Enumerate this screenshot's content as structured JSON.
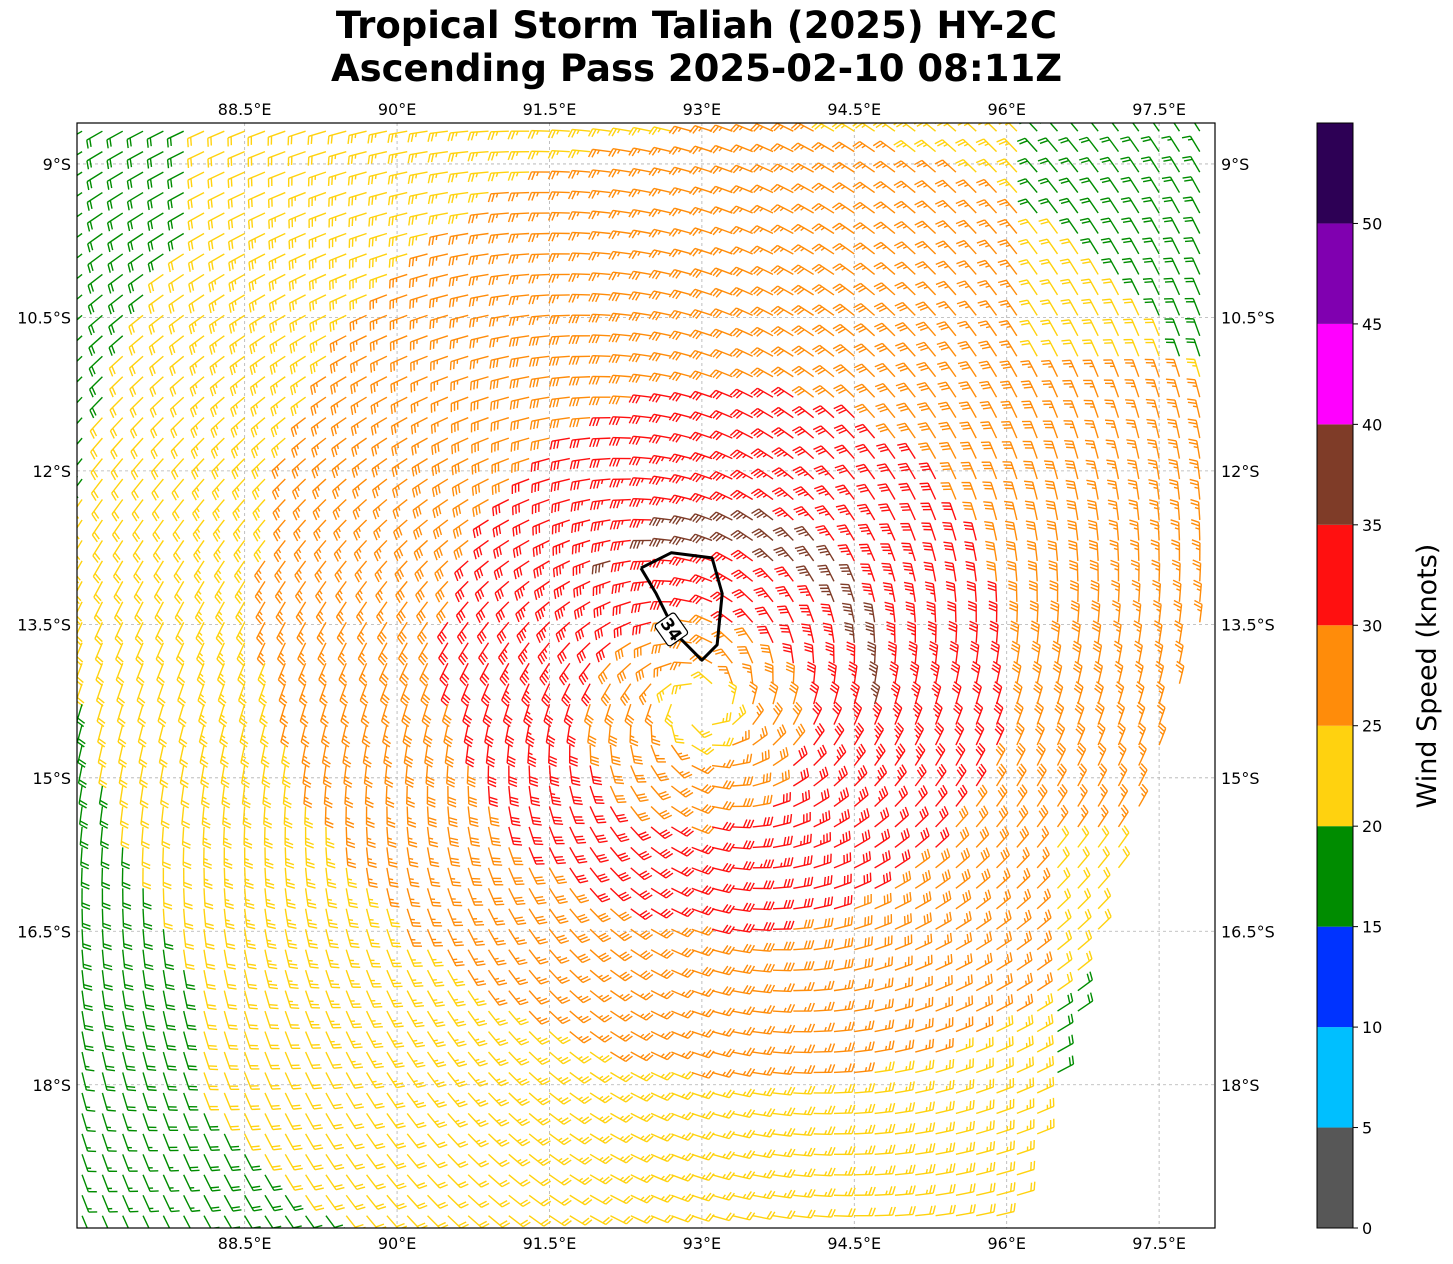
{
  "title": {
    "line1": "Tropical Storm Taliah (2025) HY-2C",
    "line2": "Ascending Pass 2025-02-10 08:11Z"
  },
  "colorbar": {
    "label": "Wind Speed (knots)",
    "ticks": [
      "0",
      "5",
      "10",
      "15",
      "20",
      "25",
      "30",
      "35",
      "40",
      "45",
      "50"
    ],
    "bins": [
      {
        "min": 0,
        "max": 5,
        "color": "#575757"
      },
      {
        "min": 5,
        "max": 10,
        "color": "#00bfff"
      },
      {
        "min": 10,
        "max": 15,
        "color": "#0033ff"
      },
      {
        "min": 15,
        "max": 20,
        "color": "#008c00"
      },
      {
        "min": 20,
        "max": 25,
        "color": "#ffd20f"
      },
      {
        "min": 25,
        "max": 30,
        "color": "#ff8c0a"
      },
      {
        "min": 30,
        "max": 35,
        "color": "#ff1010"
      },
      {
        "min": 35,
        "max": 40,
        "color": "#7f3c28"
      },
      {
        "min": 40,
        "max": 45,
        "color": "#ff00ff"
      },
      {
        "min": 45,
        "max": 50,
        "color": "#8000b0"
      },
      {
        "min": 50,
        "max": 55,
        "color": "#2d0055"
      }
    ]
  },
  "chart_data": {
    "type": "wind-barb-map",
    "lon_range": [
      86.85,
      98.05
    ],
    "lat_range": [
      -19.4,
      -8.6
    ],
    "lon_ticks": [
      88.5,
      90,
      91.5,
      93,
      94.5,
      96,
      97.5
    ],
    "lat_ticks": [
      -9,
      -10.5,
      -12,
      -13.5,
      -15,
      -16.5,
      -18
    ],
    "lon_tick_labels": [
      "88.5°E",
      "90°E",
      "91.5°E",
      "93°E",
      "94.5°E",
      "96°E",
      "97.5°E"
    ],
    "lat_tick_labels": [
      "9°S",
      "10.5°S",
      "12°S",
      "13.5°S",
      "15°S",
      "16.5°S",
      "18°S"
    ],
    "grid": true,
    "storm_center": {
      "lon": 93.0,
      "lat": -14.3
    },
    "swath_right_edge": [
      [
        98.05,
        -8.6
      ],
      [
        98.05,
        -13.2
      ],
      [
        96.0,
        -19.4
      ]
    ],
    "contour": {
      "level": 34,
      "label": "34",
      "points": [
        [
          92.4,
          -12.95
        ],
        [
          92.7,
          -12.8
        ],
        [
          93.1,
          -12.85
        ],
        [
          93.2,
          -13.2
        ],
        [
          93.15,
          -13.7
        ],
        [
          93.0,
          -13.85
        ],
        [
          92.75,
          -13.6
        ],
        [
          92.55,
          -13.2
        ],
        [
          92.4,
          -12.95
        ]
      ]
    }
  }
}
